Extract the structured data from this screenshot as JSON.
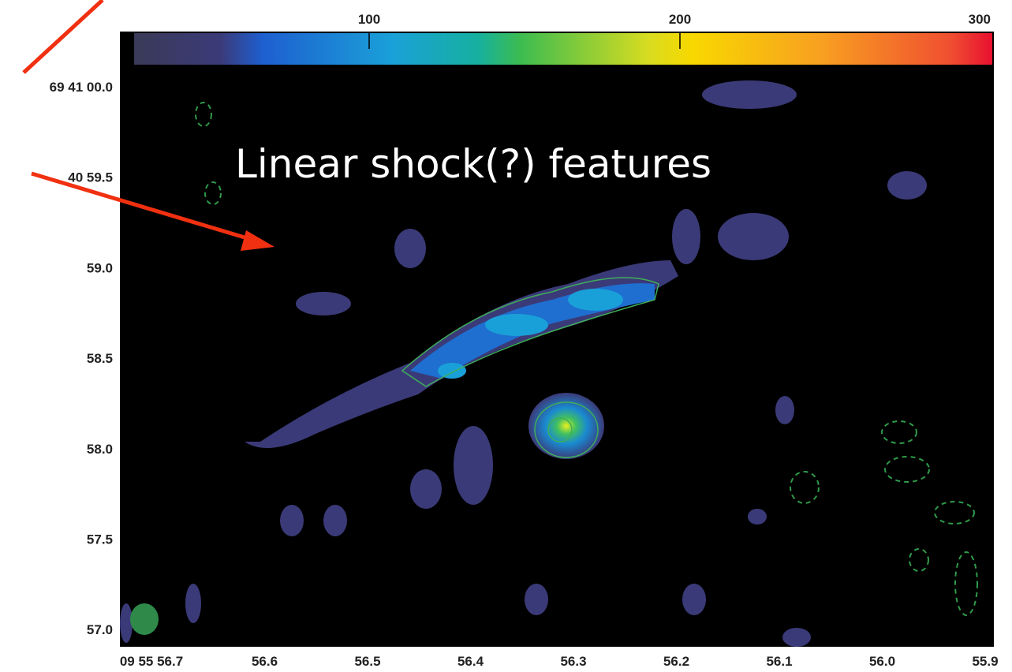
{
  "annotation": "Linear shock(?) features",
  "colorbar": {
    "ticks": [
      100,
      200,
      300
    ]
  },
  "dec_labels": [
    "69 41 00.0",
    "40 59.5",
    "59.0",
    "58.5",
    "58.0",
    "57.5",
    "57.0"
  ],
  "ra_labels": [
    "09 55 56.7",
    "56.6",
    "56.5",
    "56.4",
    "56.3",
    "56.2",
    "56.1",
    "56.0",
    "55.9"
  ]
}
